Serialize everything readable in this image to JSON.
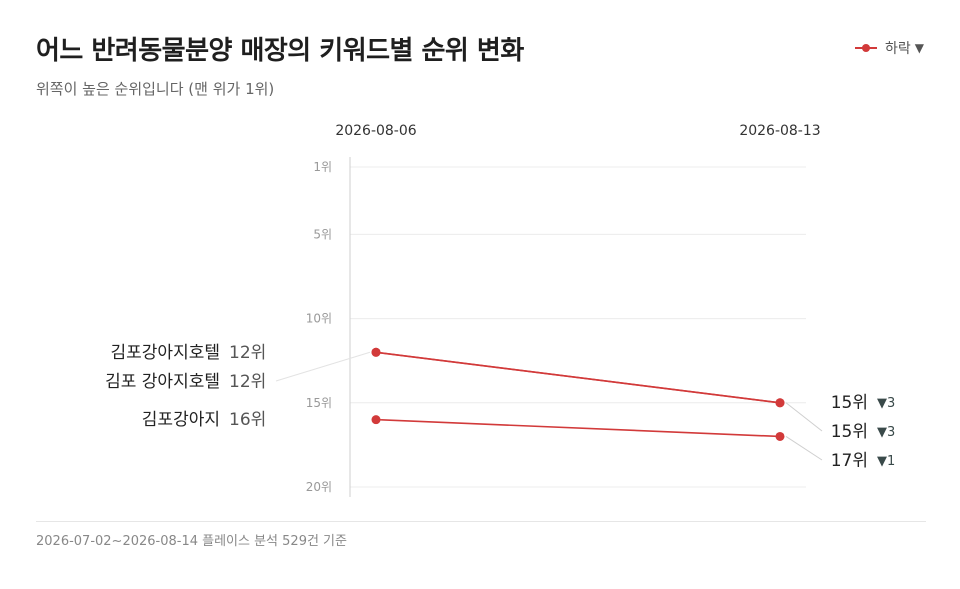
{
  "title": "어느 반려동물분양 매장의 키워드별 순위 변화",
  "subtitle": "위쪽이 높은 순위입니다 (맨 위가 1위)",
  "legend": {
    "label": "하락",
    "marker": "▼",
    "color": "#d23a3a"
  },
  "footer": "2026-07-02~2026-08-14 플레이스 분석 529건 기준",
  "chart_data": {
    "type": "slope",
    "x_labels": [
      "2026-08-06",
      "2026-08-13"
    ],
    "y_axis": {
      "ticks": [
        "1위",
        "5위",
        "10위",
        "15위",
        "20위"
      ],
      "range": [
        1,
        20
      ],
      "inverted": true
    },
    "series": [
      {
        "name": "김포강아지호텔",
        "start_rank": 12,
        "end_rank": 15,
        "start_label": "12위",
        "end_label": "15위",
        "change": "▼3"
      },
      {
        "name": "김포 강아지호텔",
        "start_rank": 12,
        "end_rank": 15,
        "start_label": "12위",
        "end_label": "15위",
        "change": "▼3"
      },
      {
        "name": "김포강아지",
        "start_rank": 16,
        "end_rank": 17,
        "start_label": "16위",
        "end_label": "17위",
        "change": "▼1"
      }
    ],
    "colors": {
      "line": "#d23a3a",
      "change": "#3a4a4a"
    }
  }
}
